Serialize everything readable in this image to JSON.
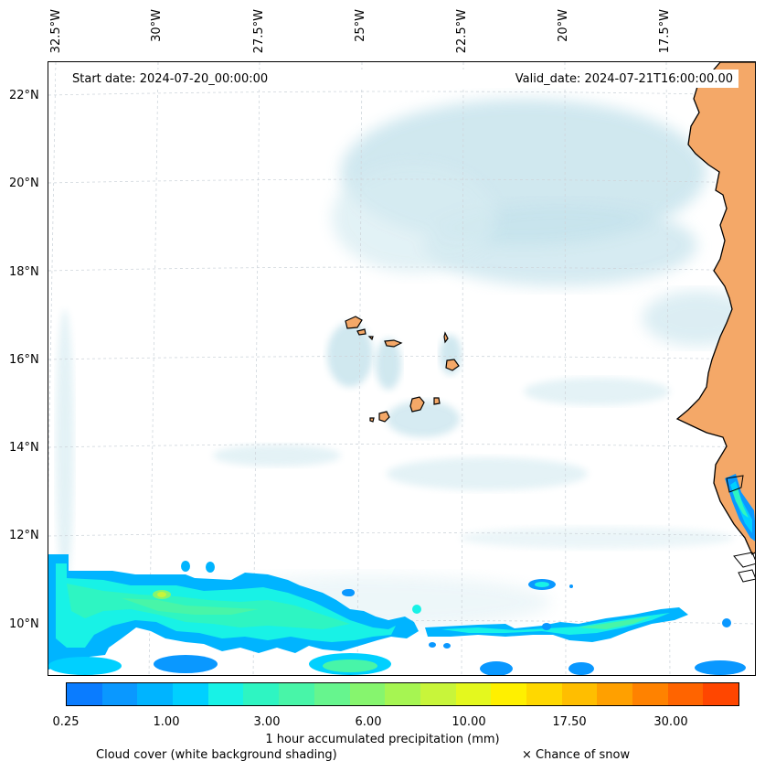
{
  "map": {
    "start_label": "Start date: 2024-07-20_00:00:00",
    "valid_label": "Valid_date: 2024-07-21T16:00:00.00",
    "lon_labels": [
      "32.5°W",
      "30°W",
      "27.5°W",
      "25°W",
      "22.5°W",
      "20°W",
      "17.5°W"
    ],
    "lat_labels": [
      "22°N",
      "20°N",
      "18°N",
      "16°N",
      "14°N",
      "12°N",
      "10°N"
    ],
    "land_color": "#f4a868",
    "coast_color": "#000000",
    "cloud_color": "#b9dde8"
  },
  "colorbar": {
    "colors": [
      "#0a7cff",
      "#0a98ff",
      "#00b4ff",
      "#00d0ff",
      "#18f2e6",
      "#2ef5c2",
      "#48f5a8",
      "#66f58e",
      "#86f56e",
      "#a6f552",
      "#c8f53a",
      "#e4f81e",
      "#fff000",
      "#ffd800",
      "#ffbe00",
      "#ffa000",
      "#ff8200",
      "#ff6400",
      "#ff4600"
    ],
    "tick_labels": [
      "0.25",
      "1.00",
      "3.00",
      "6.00",
      "10.00",
      "17.50",
      "30.00"
    ],
    "title": "1 hour accumulated precipitation (mm)"
  },
  "legend": {
    "cloud": "Cloud cover (white background shading)",
    "snow": "× Chance of snow"
  }
}
